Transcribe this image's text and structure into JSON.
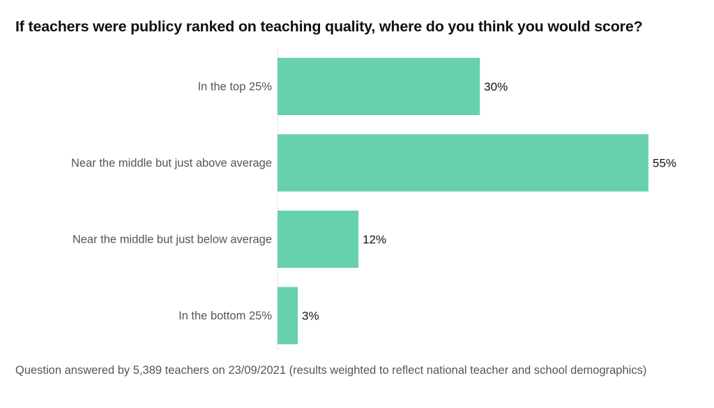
{
  "chart_data": {
    "type": "bar",
    "orientation": "horizontal",
    "title": "If teachers were publicy ranked on teaching quality, where do you think you would score?",
    "categories": [
      "In the top 25%",
      "Near the middle but just above average",
      "Near the middle but just below average",
      "In the bottom 25%"
    ],
    "values": [
      30,
      55,
      12,
      3
    ],
    "data_labels": [
      "30%",
      "55%",
      "12%",
      "3%"
    ],
    "unit": "%",
    "xlim": [
      0,
      55
    ],
    "bar_color": "#66d1aa",
    "grid": false,
    "legend": "none"
  },
  "footnote": "Question answered by 5,389 teachers on 23/09/2021 (results weighted to reflect national teacher and school demographics)"
}
